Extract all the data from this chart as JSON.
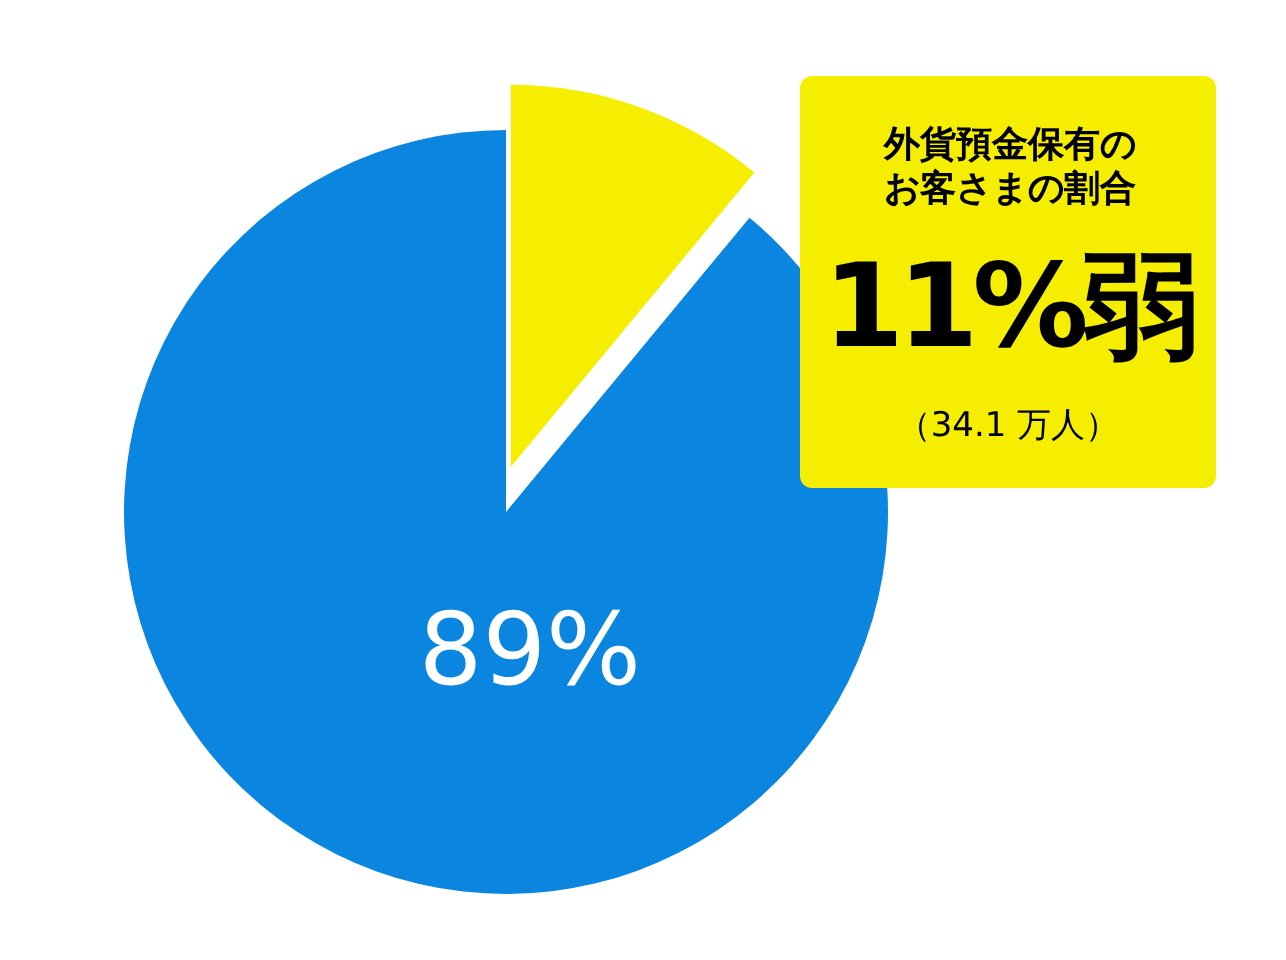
{
  "chart_data": {
    "type": "pie",
    "categories": [
      null,
      null
    ],
    "values": [
      11,
      89
    ],
    "colors": [
      "#f5ee00",
      "#0a85e0"
    ],
    "value_labels": [
      null,
      "89%"
    ],
    "annotations": [
      "外貨預金保有のお客さまの割合",
      "11%弱",
      "（34.1 万人）"
    ]
  }
}
